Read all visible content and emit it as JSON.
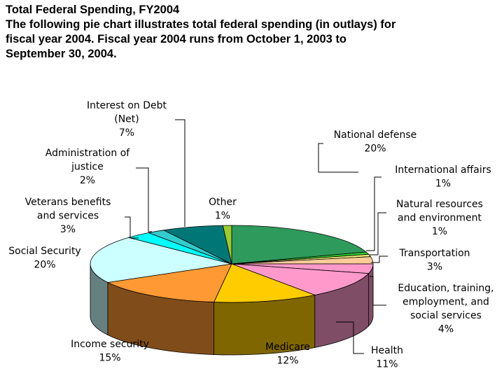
{
  "heading": {
    "title": "Total Federal Spending, FY2004",
    "description": [
      "The following pie chart illustrates total federal spending (in outlays) for",
      "fiscal year 2004. Fiscal year 2004 runs from October 1, 2003 to",
      "September 30, 2004."
    ]
  },
  "chart_data": {
    "type": "pie",
    "style": "3d",
    "title": "Total Federal Spending, FY2004",
    "slices": [
      {
        "label": "National defense",
        "value": 20,
        "pct_label": "20%",
        "color": "#2e9a5c"
      },
      {
        "label": "International affairs",
        "value": 1,
        "pct_label": "1%",
        "color": "#33cc33"
      },
      {
        "label": "Natural resources and environment",
        "value": 1,
        "pct_label": "1%",
        "color": "#f0f07a"
      },
      {
        "label": "Transportation",
        "value": 3,
        "pct_label": "3%",
        "color": "#ffcc99"
      },
      {
        "label": "Education, training, employment, and social services",
        "value": 4,
        "pct_label": "4%",
        "color": "#ff99cc"
      },
      {
        "label": "Health",
        "value": 11,
        "pct_label": "11%",
        "color": "#ff99cc"
      },
      {
        "label": "Medicare",
        "value": 12,
        "pct_label": "12%",
        "color": "#ffcc00"
      },
      {
        "label": "Income security",
        "value": 15,
        "pct_label": "15%",
        "color": "#ff9933"
      },
      {
        "label": "Social Security",
        "value": 20,
        "pct_label": "20%",
        "color": "#ccffff"
      },
      {
        "label": "Veterans benefits and services",
        "value": 3,
        "pct_label": "3%",
        "color": "#00ffff"
      },
      {
        "label": "Administration of justice",
        "value": 2,
        "pct_label": "2%",
        "color": "#33cccc"
      },
      {
        "label": "Interest on Debt (Net)",
        "value": 7,
        "pct_label": "7%",
        "color": "#007777"
      },
      {
        "label": "Other",
        "value": 1,
        "pct_label": "1%",
        "color": "#99cc33"
      }
    ]
  }
}
